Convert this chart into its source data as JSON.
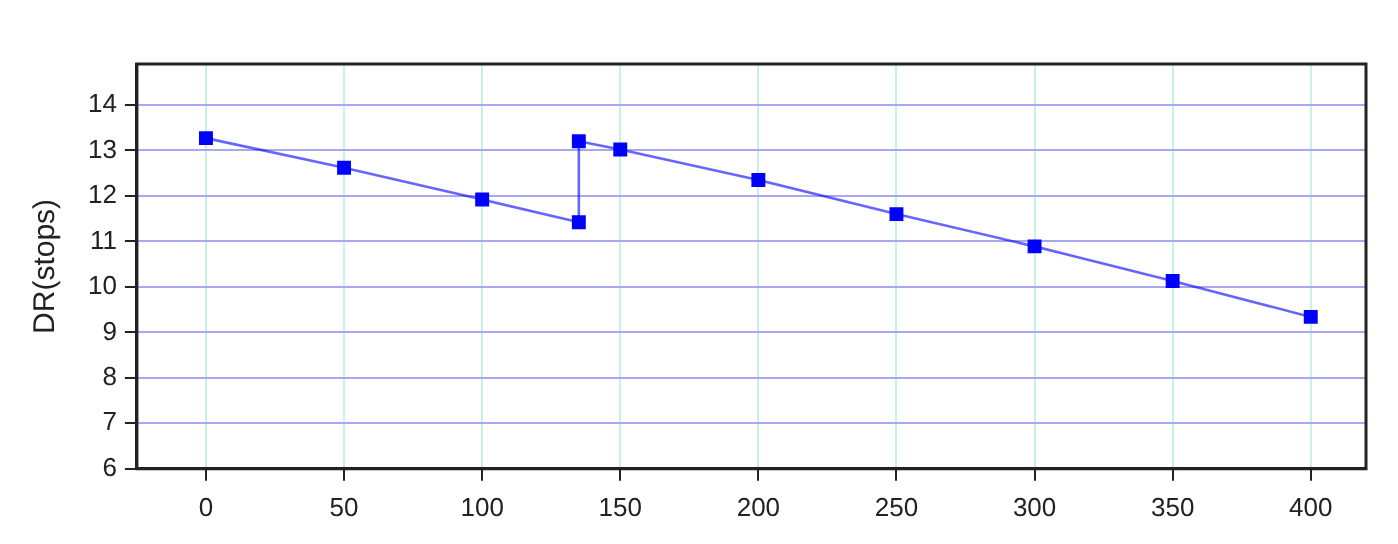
{
  "chart_data": {
    "type": "line",
    "ylabel": "DR(stops)",
    "x": [
      0,
      50,
      100,
      135,
      135,
      150,
      200,
      250,
      300,
      350,
      400
    ],
    "series": [
      {
        "color": "#0000ff",
        "values": [
          13.27,
          12.62,
          11.92,
          11.42,
          13.2,
          13.02,
          12.35,
          11.6,
          10.89,
          10.13,
          9.34
        ]
      }
    ],
    "xlim": [
      -25,
      420
    ],
    "xticks": [
      0,
      50,
      100,
      150,
      200,
      250,
      300,
      350,
      400
    ],
    "ylim": [
      6,
      14.9
    ],
    "yticks": [
      6,
      7,
      8,
      9,
      10,
      11,
      12,
      13,
      14
    ],
    "grid": true,
    "marker": "square",
    "line_style": "solid",
    "legend": false
  }
}
